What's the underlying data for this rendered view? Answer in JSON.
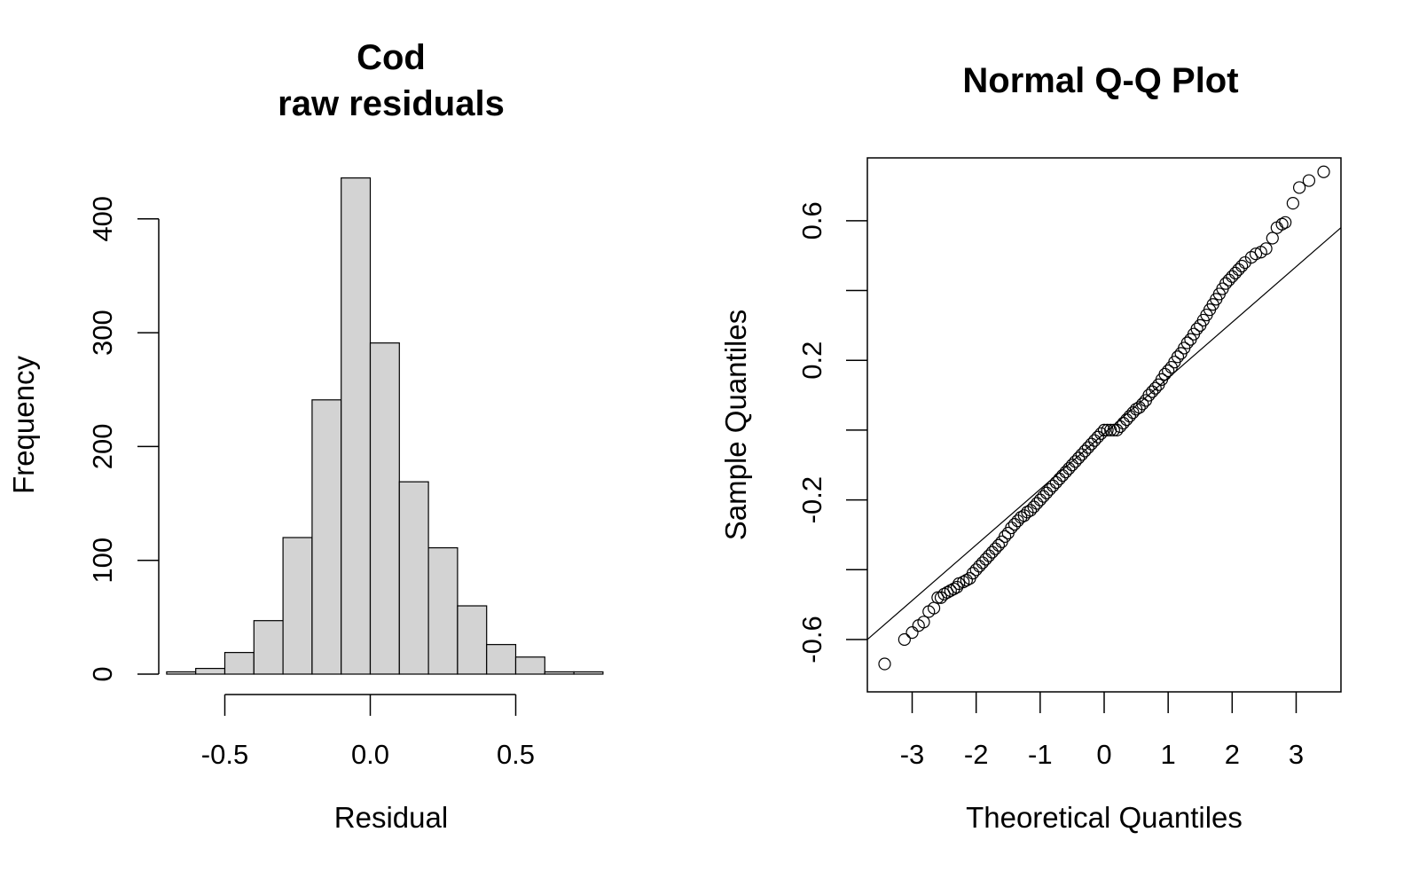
{
  "chart_data": [
    {
      "type": "bar",
      "title_lines": [
        "Cod",
        "raw residuals"
      ],
      "xlabel": "Residual",
      "ylabel": "Frequency",
      "bin_edges": [
        -0.7,
        -0.6,
        -0.5,
        -0.4,
        -0.3,
        -0.2,
        -0.1,
        0.0,
        0.1,
        0.2,
        0.3,
        0.4,
        0.5,
        0.6,
        0.7,
        0.8
      ],
      "values": [
        2,
        5,
        19,
        47,
        120,
        241,
        436,
        291,
        169,
        111,
        60,
        26,
        15,
        2,
        2
      ],
      "xticks": [
        -0.5,
        0.0,
        0.5
      ],
      "xtick_labels": [
        "-0.5",
        "0.0",
        "0.5"
      ],
      "yticks": [
        0,
        100,
        200,
        300,
        400
      ],
      "ytick_labels": [
        "0",
        "100",
        "200",
        "300",
        "400"
      ],
      "bar_color": "#d3d3d3"
    },
    {
      "type": "scatter",
      "title": "Normal Q-Q Plot",
      "xlabel": "Theoretical Quantiles",
      "ylabel": "Sample Quantiles",
      "xlim": [
        -3.7,
        3.7
      ],
      "ylim": [
        -0.75,
        0.78
      ],
      "xticks": [
        -3,
        -2,
        -1,
        0,
        1,
        2,
        3
      ],
      "xtick_labels": [
        "-3",
        "-2",
        "-1",
        "0",
        "1",
        "2",
        "3"
      ],
      "yticks": [
        -0.6,
        -0.4,
        -0.2,
        0.0,
        0.2,
        0.4,
        0.6
      ],
      "ytick_labels": [
        "-0.6",
        "",
        "-0.2",
        "",
        "0.2",
        "",
        "0.6"
      ],
      "reference_line": [
        [
          -3.7,
          -0.6
        ],
        [
          3.7,
          0.58
        ]
      ],
      "points": [
        [
          -3.43,
          -0.67
        ],
        [
          -3.12,
          -0.6
        ],
        [
          -3.0,
          -0.58
        ],
        [
          -2.9,
          -0.56
        ],
        [
          -2.82,
          -0.55
        ],
        [
          -2.74,
          -0.52
        ],
        [
          -2.66,
          -0.51
        ],
        [
          -2.6,
          -0.48
        ],
        [
          -2.55,
          -0.48
        ],
        [
          -2.5,
          -0.47
        ],
        [
          -2.45,
          -0.465
        ],
        [
          -2.4,
          -0.46
        ],
        [
          -2.35,
          -0.455
        ],
        [
          -2.3,
          -0.45
        ],
        [
          -2.27,
          -0.44
        ],
        [
          -2.2,
          -0.435
        ],
        [
          -2.15,
          -0.43
        ],
        [
          -2.1,
          -0.425
        ],
        [
          -2.05,
          -0.41
        ],
        [
          -2.0,
          -0.4
        ],
        [
          -1.95,
          -0.39
        ],
        [
          -1.9,
          -0.38
        ],
        [
          -1.85,
          -0.37
        ],
        [
          -1.8,
          -0.36
        ],
        [
          -1.75,
          -0.35
        ],
        [
          -1.7,
          -0.34
        ],
        [
          -1.65,
          -0.33
        ],
        [
          -1.6,
          -0.32
        ],
        [
          -1.55,
          -0.305
        ],
        [
          -1.5,
          -0.295
        ],
        [
          -1.45,
          -0.28
        ],
        [
          -1.4,
          -0.27
        ],
        [
          -1.35,
          -0.26
        ],
        [
          -1.3,
          -0.25
        ],
        [
          -1.25,
          -0.245
        ],
        [
          -1.2,
          -0.235
        ],
        [
          -1.15,
          -0.23
        ],
        [
          -1.1,
          -0.22
        ],
        [
          -1.05,
          -0.21
        ],
        [
          -1.0,
          -0.2
        ],
        [
          -0.95,
          -0.19
        ],
        [
          -0.9,
          -0.18
        ],
        [
          -0.85,
          -0.17
        ],
        [
          -0.8,
          -0.16
        ],
        [
          -0.75,
          -0.15
        ],
        [
          -0.7,
          -0.14
        ],
        [
          -0.65,
          -0.13
        ],
        [
          -0.6,
          -0.12
        ],
        [
          -0.55,
          -0.11
        ],
        [
          -0.5,
          -0.1
        ],
        [
          -0.45,
          -0.09
        ],
        [
          -0.4,
          -0.08
        ],
        [
          -0.35,
          -0.07
        ],
        [
          -0.3,
          -0.06
        ],
        [
          -0.25,
          -0.05
        ],
        [
          -0.2,
          -0.04
        ],
        [
          -0.15,
          -0.03
        ],
        [
          -0.1,
          -0.02
        ],
        [
          -0.05,
          -0.01
        ],
        [
          0.0,
          0.0
        ],
        [
          0.05,
          0.0
        ],
        [
          0.1,
          0.0
        ],
        [
          0.15,
          0.0
        ],
        [
          0.2,
          0.0
        ],
        [
          0.25,
          0.01
        ],
        [
          0.3,
          0.02
        ],
        [
          0.35,
          0.03
        ],
        [
          0.4,
          0.04
        ],
        [
          0.45,
          0.05
        ],
        [
          0.5,
          0.06
        ],
        [
          0.55,
          0.065
        ],
        [
          0.6,
          0.075
        ],
        [
          0.65,
          0.085
        ],
        [
          0.7,
          0.1
        ],
        [
          0.75,
          0.11
        ],
        [
          0.8,
          0.12
        ],
        [
          0.85,
          0.13
        ],
        [
          0.9,
          0.145
        ],
        [
          0.95,
          0.16
        ],
        [
          1.0,
          0.17
        ],
        [
          1.05,
          0.18
        ],
        [
          1.1,
          0.195
        ],
        [
          1.15,
          0.21
        ],
        [
          1.2,
          0.22
        ],
        [
          1.25,
          0.235
        ],
        [
          1.3,
          0.25
        ],
        [
          1.35,
          0.26
        ],
        [
          1.4,
          0.275
        ],
        [
          1.45,
          0.29
        ],
        [
          1.5,
          0.3
        ],
        [
          1.55,
          0.315
        ],
        [
          1.6,
          0.33
        ],
        [
          1.65,
          0.345
        ],
        [
          1.7,
          0.36
        ],
        [
          1.75,
          0.375
        ],
        [
          1.8,
          0.39
        ],
        [
          1.85,
          0.405
        ],
        [
          1.9,
          0.42
        ],
        [
          1.95,
          0.43
        ],
        [
          2.0,
          0.44
        ],
        [
          2.05,
          0.45
        ],
        [
          2.1,
          0.46
        ],
        [
          2.15,
          0.47
        ],
        [
          2.2,
          0.48
        ],
        [
          2.3,
          0.495
        ],
        [
          2.37,
          0.505
        ],
        [
          2.45,
          0.51
        ],
        [
          2.53,
          0.52
        ],
        [
          2.63,
          0.55
        ],
        [
          2.7,
          0.58
        ],
        [
          2.78,
          0.59
        ],
        [
          2.83,
          0.595
        ],
        [
          2.95,
          0.65
        ],
        [
          3.05,
          0.695
        ],
        [
          3.2,
          0.715
        ],
        [
          3.43,
          0.74
        ]
      ]
    }
  ]
}
